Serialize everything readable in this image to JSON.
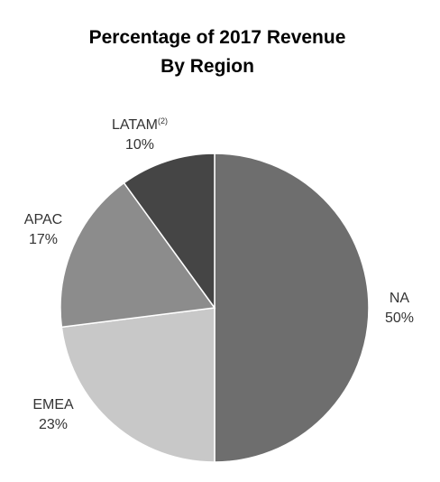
{
  "chart_data": {
    "type": "pie",
    "title_lines": [
      "Percentage of 2017 Revenue",
      "By Region"
    ],
    "slices": [
      {
        "label": "NA",
        "superscript": "",
        "value": 50,
        "value_label": "50%",
        "color": "#6e6e6e"
      },
      {
        "label": "EMEA",
        "superscript": "",
        "value": 23,
        "value_label": "23%",
        "color": "#c8c8c8"
      },
      {
        "label": "APAC",
        "superscript": "",
        "value": 17,
        "value_label": "17%",
        "color": "#8c8c8c"
      },
      {
        "label": "LATAM",
        "superscript": "(2)",
        "value": 10,
        "value_label": "10%",
        "color": "#454545"
      }
    ],
    "start": "top",
    "direction": "clockwise"
  }
}
